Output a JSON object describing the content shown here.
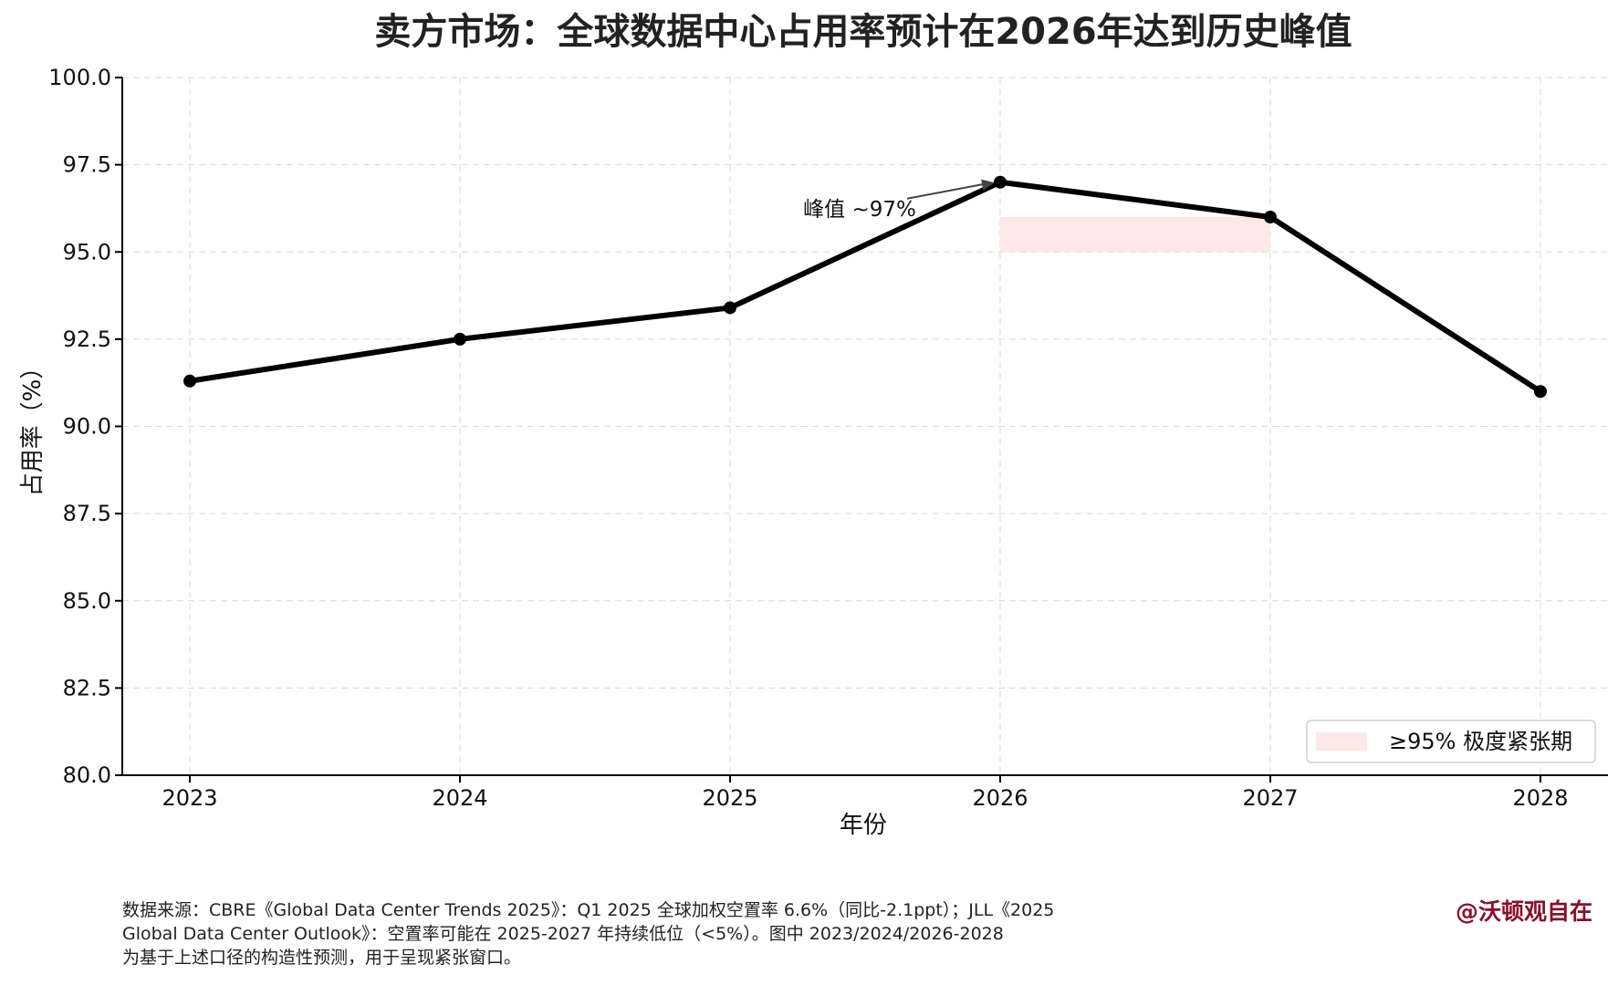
{
  "chart_data": {
    "type": "line",
    "title": "卖方市场：全球数据中心占用率预计在2026年达到历史峰值",
    "xlabel": "年份",
    "ylabel": "占用率（%）",
    "x": [
      "2023",
      "2024",
      "2025",
      "2026",
      "2027",
      "2028"
    ],
    "series": [
      {
        "values": [
          91.3,
          92.5,
          93.4,
          97.0,
          96.0,
          91.0
        ],
        "color": "#000000"
      }
    ],
    "ylim": [
      80.0,
      100.0
    ],
    "yticks": [
      "80.0",
      "82.5",
      "85.0",
      "87.5",
      "90.0",
      "92.5",
      "95.0",
      "97.5",
      "100.0"
    ],
    "grid": true,
    "shaded_band": {
      "x_range": [
        "2026",
        "2027"
      ],
      "y_range": [
        95.0,
        96.0
      ],
      "color": "#fde8e8",
      "legend_label": "≥95% 极度紧张期"
    },
    "annotation": {
      "text": "峰值 ~97%",
      "x": "2026",
      "y": 97.0
    },
    "legend_position": "bottom-right"
  },
  "footer": {
    "source_text": "数据来源：CBRE《Global Data Center Trends 2025》：Q1 2025 全球加权空置率 6.6%（同比-2.1ppt）；JLL《2025\nGlobal Data Center Outlook》：空置率可能在 2025-2027 年持续低位（<5%）。图中 2023/2024/2026-2028\n为基于上述口径的构造性预测，用于呈现紧张窗口。"
  },
  "watermark": "@沃顿观自在"
}
